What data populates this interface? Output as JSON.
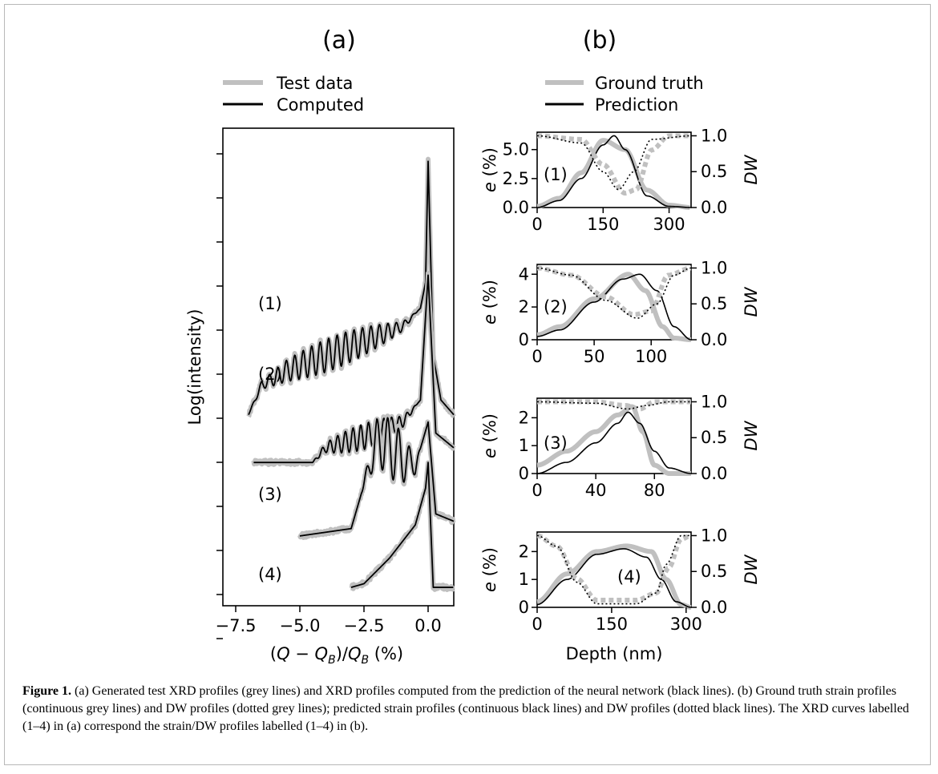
{
  "panel_a": {
    "label": "(a)",
    "legend": [
      "Test data",
      "Computed"
    ],
    "ylabel": "Log(intensity)",
    "xlabel": "(Q − Q_B)/Q_B (%)",
    "xticks": [
      "−7.5",
      "−5.0",
      "−2.5",
      "0.0"
    ],
    "curve_labels": [
      "(1)",
      "(2)",
      "(3)",
      "(4)"
    ]
  },
  "panel_b": {
    "label": "(b)",
    "legend": [
      "Ground truth",
      "Prediction"
    ],
    "xlabel": "Depth (nm)",
    "ylabel_left": "e (%)",
    "ylabel_right": "DW"
  },
  "caption": {
    "label": "Figure 1.",
    "text": "(a) Generated test XRD profiles (grey lines) and XRD profiles computed from the prediction of the neural network (black lines). (b) Ground truth strain profiles (continuous grey lines) and DW profiles (dotted grey lines); predicted strain profiles (continuous black lines) and DW profiles (dotted black lines). The XRD curves labelled (1–4) in (a) correspond the strain/DW profiles labelled (1–4) in (b)."
  },
  "colors": {
    "ground_truth": "#c0c0c0",
    "prediction": "#000000"
  },
  "chart_data": [
    {
      "type": "line",
      "title": "(a)",
      "xlabel": "(Q − Q_B)/Q_B (%)",
      "ylabel": "Log(intensity)",
      "xlim": [
        -8.0,
        1.0
      ],
      "ylim": [
        0,
        13
      ],
      "xticks": [
        -7.5,
        -5.0,
        -2.5,
        0.0
      ],
      "series": [
        {
          "name": "Test data",
          "label": "(1)",
          "x": [
            -7.0,
            -6.5,
            -5.5,
            -4.0,
            -2.5,
            -1.0,
            -0.3,
            -0.1,
            0.0,
            0.2,
            0.5,
            1.0
          ],
          "y": [
            5.2,
            6.0,
            6.4,
            6.8,
            7.2,
            7.6,
            8.1,
            8.8,
            12.1,
            6.8,
            5.6,
            5.2
          ]
        },
        {
          "name": "Computed",
          "label": "(1)",
          "x": [
            -7.0,
            -6.5,
            -5.5,
            -4.0,
            -2.5,
            -1.0,
            -0.3,
            -0.1,
            0.0,
            0.2,
            0.5,
            1.0
          ],
          "y": [
            5.2,
            6.0,
            6.4,
            6.8,
            7.2,
            7.6,
            8.1,
            8.8,
            12.1,
            6.8,
            5.6,
            5.2
          ]
        },
        {
          "name": "Test data",
          "label": "(2)",
          "x": [
            -6.8,
            -4.5,
            -4.0,
            -2.5,
            -1.0,
            -0.3,
            0.0,
            0.3,
            1.0
          ],
          "y": [
            3.9,
            3.9,
            4.3,
            4.6,
            5.0,
            5.6,
            9.0,
            4.7,
            4.3
          ]
        },
        {
          "name": "Computed",
          "label": "(2)",
          "x": [
            -6.8,
            -4.5,
            -4.0,
            -2.5,
            -1.0,
            -0.3,
            0.0,
            0.3,
            1.0
          ],
          "y": [
            3.9,
            3.9,
            4.3,
            4.6,
            5.0,
            5.6,
            9.0,
            4.7,
            4.3
          ]
        },
        {
          "name": "Test data",
          "label": "(3)",
          "x": [
            -5.0,
            -3.0,
            -2.0,
            -1.5,
            -1.0,
            -0.5,
            0.0,
            0.3,
            1.0
          ],
          "y": [
            1.9,
            2.1,
            4.5,
            4.3,
            4.0,
            3.8,
            5.0,
            2.5,
            2.3
          ]
        },
        {
          "name": "Computed",
          "label": "(3)",
          "x": [
            -5.0,
            -3.0,
            -2.0,
            -1.5,
            -1.0,
            -0.5,
            0.0,
            0.3,
            1.0
          ],
          "y": [
            1.9,
            2.1,
            4.5,
            4.3,
            4.0,
            3.8,
            5.0,
            2.5,
            2.3
          ]
        },
        {
          "name": "Test data",
          "label": "(4)",
          "x": [
            -3.0,
            -2.5,
            -1.5,
            -0.5,
            -0.1,
            0.0,
            0.2,
            1.0
          ],
          "y": [
            0.5,
            0.6,
            1.3,
            2.2,
            3.2,
            3.9,
            0.5,
            0.5
          ]
        },
        {
          "name": "Computed",
          "label": "(4)",
          "x": [
            -3.0,
            -2.5,
            -1.5,
            -0.5,
            -0.1,
            0.0,
            0.2,
            1.0
          ],
          "y": [
            0.5,
            0.6,
            1.3,
            2.2,
            3.2,
            3.9,
            0.5,
            0.5
          ]
        }
      ]
    },
    {
      "type": "line",
      "title": "(1)",
      "xlabel": "",
      "ylabel": "e (%)",
      "ylabel_right": "DW",
      "xlim": [
        0,
        350
      ],
      "ylim": [
        0,
        6.5
      ],
      "ylim_right": [
        0,
        1.05
      ],
      "xticks": [
        0,
        150,
        300
      ],
      "yticks": [
        0.0,
        2.5,
        5.0
      ],
      "yticks_right": [
        0.0,
        0.5,
        1.0
      ],
      "series": [
        {
          "name": "Ground truth",
          "kind": "strain",
          "x": [
            0,
            50,
            100,
            150,
            200,
            250,
            300,
            350
          ],
          "y": [
            0.1,
            0.8,
            3.0,
            5.8,
            5.0,
            1.5,
            0.2,
            0.0
          ]
        },
        {
          "name": "Prediction",
          "kind": "strain",
          "x": [
            0,
            50,
            100,
            150,
            175,
            200,
            250,
            300,
            350
          ],
          "y": [
            0.0,
            0.6,
            2.5,
            5.4,
            6.2,
            5.0,
            1.0,
            0.1,
            0.0
          ]
        },
        {
          "name": "Ground truth",
          "kind": "DW",
          "x": [
            0,
            100,
            150,
            200,
            225,
            260,
            300,
            350
          ],
          "y": [
            1.0,
            0.95,
            0.6,
            0.2,
            0.25,
            0.8,
            1.0,
            1.0
          ]
        },
        {
          "name": "Prediction",
          "kind": "DW",
          "x": [
            0,
            100,
            150,
            185,
            220,
            260,
            350
          ],
          "y": [
            1.0,
            0.9,
            0.5,
            0.25,
            0.5,
            0.95,
            1.0
          ]
        }
      ]
    },
    {
      "type": "line",
      "title": "(2)",
      "xlabel": "",
      "ylabel": "e (%)",
      "ylabel_right": "DW",
      "xlim": [
        0,
        135
      ],
      "ylim": [
        0,
        4.6
      ],
      "ylim_right": [
        0,
        1.05
      ],
      "xticks": [
        0,
        50,
        100
      ],
      "yticks": [
        0,
        2,
        4
      ],
      "yticks_right": [
        0.0,
        0.5,
        1.0
      ],
      "series": [
        {
          "name": "Ground truth",
          "kind": "strain",
          "x": [
            0,
            20,
            50,
            80,
            95,
            110,
            120,
            135
          ],
          "y": [
            0.3,
            0.8,
            2.5,
            4.0,
            3.0,
            0.8,
            0.1,
            0.0
          ]
        },
        {
          "name": "Prediction",
          "kind": "strain",
          "x": [
            0,
            20,
            50,
            75,
            90,
            105,
            120,
            135
          ],
          "y": [
            0.2,
            0.6,
            2.3,
            3.7,
            4.0,
            3.0,
            0.8,
            0.0
          ]
        },
        {
          "name": "Ground truth",
          "kind": "DW",
          "x": [
            0,
            30,
            60,
            85,
            100,
            115,
            135
          ],
          "y": [
            1.0,
            0.9,
            0.6,
            0.35,
            0.4,
            0.9,
            1.0
          ]
        },
        {
          "name": "Prediction",
          "kind": "DW",
          "x": [
            0,
            30,
            60,
            88,
            105,
            120,
            135
          ],
          "y": [
            1.0,
            0.9,
            0.55,
            0.3,
            0.5,
            0.9,
            1.0
          ]
        }
      ]
    },
    {
      "type": "line",
      "title": "(3)",
      "xlabel": "",
      "ylabel": "e (%)",
      "ylabel_right": "DW",
      "xlim": [
        0,
        105
      ],
      "ylim": [
        0,
        2.7
      ],
      "ylim_right": [
        0,
        1.05
      ],
      "xticks": [
        0,
        40,
        80
      ],
      "yticks": [
        0,
        1,
        2
      ],
      "yticks_right": [
        0.0,
        0.5,
        1.0
      ],
      "series": [
        {
          "name": "Ground truth",
          "kind": "strain",
          "x": [
            0,
            20,
            40,
            55,
            65,
            72,
            80,
            90,
            105
          ],
          "y": [
            0.3,
            0.8,
            1.5,
            2.1,
            2.4,
            1.5,
            0.3,
            0.0,
            0.0
          ]
        },
        {
          "name": "Prediction",
          "kind": "strain",
          "x": [
            0,
            20,
            40,
            55,
            62,
            70,
            80,
            90,
            105
          ],
          "y": [
            0.0,
            0.4,
            1.1,
            1.8,
            2.2,
            1.8,
            0.8,
            0.2,
            0.0
          ]
        },
        {
          "name": "Ground truth",
          "kind": "DW",
          "x": [
            0,
            40,
            60,
            70,
            80,
            105
          ],
          "y": [
            1.0,
            1.0,
            0.95,
            0.9,
            1.0,
            1.0
          ]
        },
        {
          "name": "Prediction",
          "kind": "DW",
          "x": [
            0,
            40,
            62,
            75,
            90,
            105
          ],
          "y": [
            1.0,
            0.98,
            0.9,
            0.95,
            1.0,
            1.0
          ]
        }
      ]
    },
    {
      "type": "line",
      "title": "(4)",
      "xlabel": "Depth (nm)",
      "ylabel": "e (%)",
      "ylabel_right": "DW",
      "xlim": [
        0,
        310
      ],
      "ylim": [
        0,
        2.7
      ],
      "ylim_right": [
        0,
        1.05
      ],
      "xticks": [
        0,
        150,
        300
      ],
      "yticks": [
        0,
        1,
        2
      ],
      "yticks_right": [
        0.0,
        0.5,
        1.0
      ],
      "series": [
        {
          "name": "Ground truth",
          "kind": "strain",
          "x": [
            0,
            60,
            120,
            180,
            230,
            260,
            290,
            310
          ],
          "y": [
            0.2,
            1.2,
            2.0,
            2.2,
            2.0,
            1.0,
            0.1,
            0.0
          ]
        },
        {
          "name": "Prediction",
          "kind": "strain",
          "x": [
            0,
            60,
            120,
            175,
            220,
            250,
            280,
            310
          ],
          "y": [
            0.1,
            1.0,
            1.9,
            2.1,
            1.8,
            1.0,
            0.2,
            0.0
          ]
        },
        {
          "name": "Ground truth",
          "kind": "DW",
          "x": [
            0,
            40,
            80,
            120,
            200,
            240,
            265,
            290,
            310
          ],
          "y": [
            1.0,
            0.85,
            0.4,
            0.1,
            0.1,
            0.2,
            0.55,
            0.95,
            1.0
          ]
        },
        {
          "name": "Prediction",
          "kind": "DW",
          "x": [
            0,
            40,
            80,
            120,
            200,
            240,
            260,
            290,
            310
          ],
          "y": [
            1.0,
            0.85,
            0.35,
            0.05,
            0.05,
            0.2,
            0.6,
            1.0,
            1.0
          ]
        }
      ]
    }
  ]
}
